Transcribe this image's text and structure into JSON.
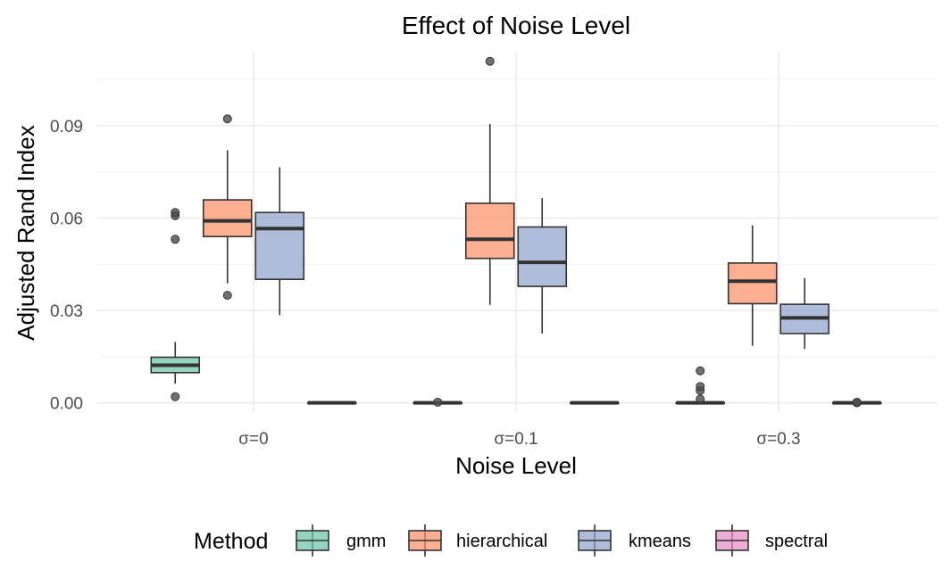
{
  "chart_data": {
    "type": "boxplot",
    "title": "Effect of Noise Level",
    "xlabel": "Noise Level",
    "ylabel": "Adjusted Rand Index",
    "categories": [
      "σ=0",
      "σ=0.1",
      "σ=0.3"
    ],
    "ylim": [
      -0.003,
      0.114
    ],
    "yticks": [
      0.0,
      0.03,
      0.06,
      0.09
    ],
    "ytick_labels": [
      "0.00",
      "0.03",
      "0.06",
      "0.09"
    ],
    "grid": true,
    "legend": {
      "title": "Method",
      "position": "bottom",
      "entries": [
        "gmm",
        "hierarchical",
        "kmeans",
        "spectral"
      ]
    },
    "series": [
      {
        "name": "gmm",
        "color": "#66C2A5",
        "boxes": [
          {
            "whisker_low": 0.0062,
            "q1": 0.0098,
            "median": 0.0122,
            "q3": 0.0148,
            "whisker_high": 0.0198,
            "outliers": [
              0.002,
              0.0531,
              0.0608,
              0.0618
            ]
          },
          {
            "whisker_low": 0.0,
            "q1": 0.0,
            "median": 0.0,
            "q3": 0.0,
            "whisker_high": 0.0,
            "outliers": [
              0.0002
            ]
          },
          {
            "whisker_low": 0.0,
            "q1": 0.0,
            "median": 0.0,
            "q3": 0.0,
            "whisker_high": 0.0,
            "outliers": [
              0.0012,
              0.004,
              0.0053,
              0.0104
            ]
          }
        ]
      },
      {
        "name": "hierarchical",
        "color": "#FC8D62",
        "boxes": [
          {
            "whisker_low": 0.0388,
            "q1": 0.054,
            "median": 0.0591,
            "q3": 0.0659,
            "whisker_high": 0.082,
            "outliers": [
              0.0349,
              0.0922
            ]
          },
          {
            "whisker_low": 0.0318,
            "q1": 0.0469,
            "median": 0.0531,
            "q3": 0.0648,
            "whisker_high": 0.0905,
            "outliers": [
              0.1109
            ]
          },
          {
            "whisker_low": 0.0185,
            "q1": 0.0322,
            "median": 0.0395,
            "q3": 0.0454,
            "whisker_high": 0.0576,
            "outliers": []
          }
        ]
      },
      {
        "name": "kmeans",
        "color": "#8DA0CB",
        "boxes": [
          {
            "whisker_low": 0.0285,
            "q1": 0.0401,
            "median": 0.0566,
            "q3": 0.0618,
            "whisker_high": 0.0765,
            "outliers": []
          },
          {
            "whisker_low": 0.0225,
            "q1": 0.0378,
            "median": 0.0456,
            "q3": 0.0571,
            "whisker_high": 0.0665,
            "outliers": []
          },
          {
            "whisker_low": 0.0175,
            "q1": 0.0225,
            "median": 0.0276,
            "q3": 0.032,
            "whisker_high": 0.0405,
            "outliers": []
          }
        ]
      },
      {
        "name": "spectral",
        "color": "#E78AC3",
        "boxes": [
          {
            "whisker_low": 0.0,
            "q1": 0.0,
            "median": 0.0,
            "q3": 0.0,
            "whisker_high": 0.0,
            "outliers": []
          },
          {
            "whisker_low": 0.0,
            "q1": 0.0,
            "median": 0.0,
            "q3": 0.0,
            "whisker_high": 0.0,
            "outliers": []
          },
          {
            "whisker_low": 0.0,
            "q1": 0.0,
            "median": 0.0,
            "q3": 0.0,
            "whisker_high": 0.0,
            "outliers": [
              0.0,
              0.0002
            ]
          }
        ]
      }
    ]
  }
}
